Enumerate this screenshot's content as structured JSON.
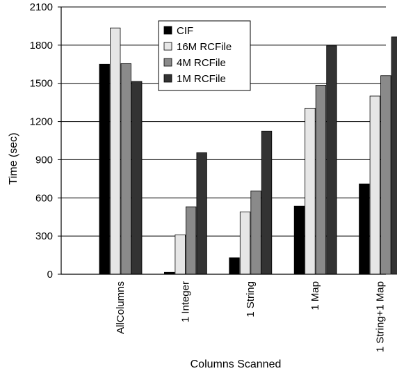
{
  "chart_data": {
    "type": "bar",
    "title": "",
    "xlabel": "Columns Scanned",
    "ylabel": "Time (sec)",
    "ylim": [
      0,
      2100
    ],
    "yticks": [
      0,
      300,
      600,
      900,
      1200,
      1500,
      1800,
      2100
    ],
    "grid": true,
    "legend_position": "top-center",
    "categories": [
      "AllColumns",
      "1 Integer",
      "1 String",
      "1 Map",
      "1 String+1 Map"
    ],
    "series": [
      {
        "name": "CIF",
        "color": "#000000",
        "values": [
          1650,
          15,
          130,
          535,
          710
        ]
      },
      {
        "name": "16M RCFile",
        "color": "#e6e6e6",
        "values": [
          1935,
          310,
          490,
          1305,
          1400
        ]
      },
      {
        "name": "4M RCFile",
        "color": "#8a8a8a",
        "values": [
          1655,
          530,
          655,
          1485,
          1560
        ]
      },
      {
        "name": "1M RCFile",
        "color": "#333333",
        "values": [
          1515,
          955,
          1125,
          1795,
          1865
        ]
      }
    ]
  }
}
